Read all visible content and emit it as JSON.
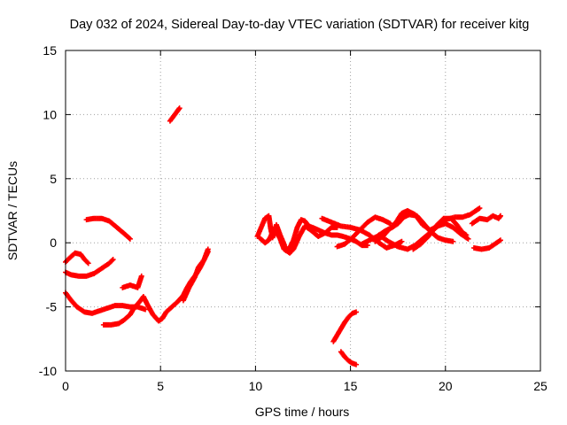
{
  "chart_data": {
    "type": "scatter",
    "title": "Day 032 of 2024, Sidereal Day-to-day VTEC variation (SDTVAR) for receiver kitg",
    "xlabel": "GPS time / hours",
    "ylabel": "SDTVAR / TECUs",
    "xlim": [
      0,
      25
    ],
    "ylim": [
      -10,
      15
    ],
    "x_ticks": [
      0,
      5,
      10,
      15,
      20,
      25
    ],
    "y_ticks": [
      -10,
      -5,
      0,
      5,
      10,
      15
    ],
    "grid": true,
    "marker": "plus",
    "color": "#ff0000",
    "tracks": [
      {
        "points": [
          [
            1.1,
            1.8
          ],
          [
            1.5,
            1.9
          ],
          [
            1.9,
            1.9
          ],
          [
            2.3,
            1.7
          ],
          [
            2.7,
            1.2
          ],
          [
            3.1,
            0.7
          ],
          [
            3.4,
            0.3
          ]
        ]
      },
      {
        "points": [
          [
            0.0,
            -1.5
          ],
          [
            0.2,
            -1.2
          ],
          [
            0.5,
            -0.8
          ],
          [
            0.8,
            -0.9
          ],
          [
            1.0,
            -1.3
          ],
          [
            1.2,
            -1.6
          ]
        ]
      },
      {
        "points": [
          [
            0.0,
            -2.3
          ],
          [
            0.3,
            -2.5
          ],
          [
            0.7,
            -2.6
          ],
          [
            1.1,
            -2.6
          ],
          [
            1.5,
            -2.4
          ],
          [
            1.9,
            -2.0
          ],
          [
            2.3,
            -1.6
          ],
          [
            2.5,
            -1.3
          ]
        ]
      },
      {
        "points": [
          [
            0.0,
            -3.9
          ],
          [
            0.3,
            -4.5
          ],
          [
            0.6,
            -5.0
          ],
          [
            1.0,
            -5.4
          ],
          [
            1.4,
            -5.5
          ],
          [
            1.8,
            -5.3
          ],
          [
            2.2,
            -5.1
          ],
          [
            2.6,
            -4.9
          ],
          [
            3.0,
            -4.9
          ],
          [
            3.4,
            -5.0
          ],
          [
            3.8,
            -5.0
          ],
          [
            4.2,
            -5.2
          ]
        ]
      },
      {
        "points": [
          [
            2.0,
            -6.4
          ],
          [
            2.4,
            -6.4
          ],
          [
            2.8,
            -6.3
          ],
          [
            3.1,
            -6.0
          ],
          [
            3.4,
            -5.6
          ],
          [
            3.6,
            -5.1
          ],
          [
            3.9,
            -4.6
          ],
          [
            4.1,
            -4.2
          ],
          [
            4.3,
            -4.8
          ],
          [
            4.6,
            -5.6
          ],
          [
            4.9,
            -6.1
          ],
          [
            5.1,
            -5.9
          ],
          [
            5.3,
            -5.4
          ],
          [
            5.6,
            -5.0
          ],
          [
            5.9,
            -4.6
          ],
          [
            6.2,
            -4.1
          ],
          [
            6.4,
            -3.5
          ],
          [
            6.6,
            -3.0
          ],
          [
            6.9,
            -2.4
          ],
          [
            7.1,
            -1.9
          ],
          [
            7.3,
            -1.3
          ],
          [
            7.5,
            -0.7
          ]
        ]
      },
      {
        "points": [
          [
            3.0,
            -3.5
          ],
          [
            3.4,
            -3.3
          ],
          [
            3.8,
            -3.5
          ],
          [
            4.0,
            -2.6
          ]
        ]
      },
      {
        "points": [
          [
            6.2,
            -4.5
          ],
          [
            6.5,
            -3.5
          ],
          [
            6.8,
            -2.7
          ],
          [
            7.0,
            -1.9
          ],
          [
            7.3,
            -1.3
          ],
          [
            7.5,
            -0.5
          ]
        ]
      },
      {
        "points": [
          [
            5.5,
            9.5
          ],
          [
            5.7,
            9.9
          ],
          [
            5.9,
            10.3
          ],
          [
            6.0,
            10.5
          ]
        ]
      },
      {
        "points": [
          [
            10.1,
            0.5
          ],
          [
            10.3,
            1.2
          ],
          [
            10.5,
            1.9
          ],
          [
            10.7,
            2.1
          ],
          [
            10.8,
            1.1
          ],
          [
            10.9,
            0.4
          ],
          [
            11.1,
            1.4
          ],
          [
            11.3,
            0.6
          ],
          [
            11.5,
            -0.1
          ],
          [
            11.6,
            -0.6
          ],
          [
            11.8,
            -0.4
          ],
          [
            12.0,
            0.2
          ],
          [
            12.2,
            1.2
          ],
          [
            12.4,
            1.8
          ],
          [
            12.6,
            1.7
          ],
          [
            12.8,
            1.3
          ],
          [
            13.0,
            1.2
          ],
          [
            13.3,
            1.0
          ],
          [
            13.6,
            0.8
          ],
          [
            14.0,
            0.6
          ],
          [
            14.3,
            0.6
          ],
          [
            14.6,
            0.5
          ],
          [
            15.0,
            0.3
          ],
          [
            15.3,
            0.1
          ],
          [
            15.6,
            -0.2
          ],
          [
            15.9,
            -0.2
          ]
        ]
      },
      {
        "points": [
          [
            10.2,
            0.4
          ],
          [
            10.5,
            0.0
          ],
          [
            10.7,
            0.2
          ],
          [
            11.0,
            1.1
          ],
          [
            11.3,
            0.3
          ],
          [
            11.5,
            -0.5
          ],
          [
            11.8,
            -0.8
          ],
          [
            12.0,
            -0.5
          ],
          [
            12.3,
            0.5
          ],
          [
            12.6,
            1.3
          ],
          [
            12.9,
            1.0
          ],
          [
            13.3,
            0.5
          ],
          [
            13.7,
            0.8
          ],
          [
            14.0,
            1.2
          ],
          [
            14.3,
            1.2
          ]
        ]
      },
      {
        "points": [
          [
            13.5,
            1.9
          ],
          [
            14.0,
            1.6
          ],
          [
            14.5,
            1.3
          ],
          [
            15.0,
            1.2
          ],
          [
            15.5,
            1.0
          ],
          [
            16.0,
            0.6
          ],
          [
            16.5,
            0.0
          ],
          [
            16.9,
            -0.4
          ],
          [
            17.3,
            -0.2
          ],
          [
            17.7,
            0.1
          ]
        ]
      },
      {
        "points": [
          [
            14.3,
            -0.3
          ],
          [
            14.7,
            -0.1
          ],
          [
            15.1,
            0.4
          ],
          [
            15.5,
            1.0
          ],
          [
            15.9,
            1.6
          ],
          [
            16.3,
            2.0
          ],
          [
            16.7,
            1.8
          ],
          [
            17.1,
            1.5
          ]
        ]
      },
      {
        "points": [
          [
            15.6,
            -0.1
          ],
          [
            16.0,
            0.2
          ],
          [
            16.4,
            0.5
          ],
          [
            16.8,
            0.9
          ],
          [
            17.2,
            1.2
          ],
          [
            17.5,
            1.5
          ],
          [
            17.8,
            2.0
          ],
          [
            18.1,
            2.2
          ],
          [
            18.5,
            2.1
          ],
          [
            18.8,
            1.6
          ],
          [
            19.2,
            0.9
          ],
          [
            19.6,
            0.4
          ],
          [
            20.0,
            0.2
          ],
          [
            20.4,
            0.1
          ]
        ]
      },
      {
        "points": [
          [
            16.3,
            0.1
          ],
          [
            16.7,
            0.5
          ],
          [
            17.0,
            1.0
          ],
          [
            17.4,
            1.6
          ],
          [
            17.7,
            2.3
          ],
          [
            18.0,
            2.5
          ],
          [
            18.4,
            2.2
          ],
          [
            18.8,
            1.4
          ],
          [
            19.2,
            1.0
          ],
          [
            19.6,
            1.3
          ],
          [
            20.0,
            1.5
          ],
          [
            20.4,
            1.2
          ],
          [
            20.8,
            0.7
          ],
          [
            21.2,
            0.3
          ]
        ]
      },
      {
        "points": [
          [
            16.5,
            0.6
          ],
          [
            17.0,
            0.1
          ],
          [
            17.5,
            -0.3
          ],
          [
            18.0,
            -0.5
          ],
          [
            18.4,
            -0.2
          ],
          [
            18.8,
            0.3
          ],
          [
            19.2,
            0.8
          ],
          [
            19.6,
            1.3
          ],
          [
            20.0,
            1.8
          ],
          [
            20.5,
            2.0
          ],
          [
            20.9,
            2.0
          ],
          [
            21.3,
            2.2
          ],
          [
            21.6,
            2.5
          ],
          [
            21.8,
            2.7
          ]
        ]
      },
      {
        "points": [
          [
            18.3,
            -0.5
          ],
          [
            18.7,
            -0.1
          ],
          [
            19.1,
            0.5
          ],
          [
            19.5,
            1.3
          ],
          [
            19.9,
            1.9
          ],
          [
            20.3,
            1.9
          ],
          [
            20.6,
            1.4
          ],
          [
            20.9,
            0.8
          ],
          [
            21.1,
            0.6
          ]
        ]
      },
      {
        "points": [
          [
            21.4,
            1.5
          ],
          [
            21.8,
            1.9
          ],
          [
            22.2,
            1.8
          ],
          [
            22.5,
            2.1
          ],
          [
            22.8,
            1.9
          ],
          [
            22.9,
            2.1
          ]
        ]
      },
      {
        "points": [
          [
            21.5,
            -0.4
          ],
          [
            21.9,
            -0.5
          ],
          [
            22.3,
            -0.4
          ],
          [
            22.6,
            -0.1
          ],
          [
            22.9,
            0.2
          ]
        ]
      },
      {
        "points": [
          [
            14.1,
            -7.7
          ],
          [
            14.3,
            -7.2
          ],
          [
            14.5,
            -6.7
          ],
          [
            14.7,
            -6.2
          ],
          [
            14.9,
            -5.8
          ],
          [
            15.1,
            -5.5
          ],
          [
            15.3,
            -5.4
          ]
        ]
      },
      {
        "points": [
          [
            14.5,
            -8.5
          ],
          [
            14.7,
            -8.9
          ],
          [
            14.9,
            -9.2
          ],
          [
            15.1,
            -9.4
          ],
          [
            15.3,
            -9.5
          ]
        ]
      }
    ]
  }
}
